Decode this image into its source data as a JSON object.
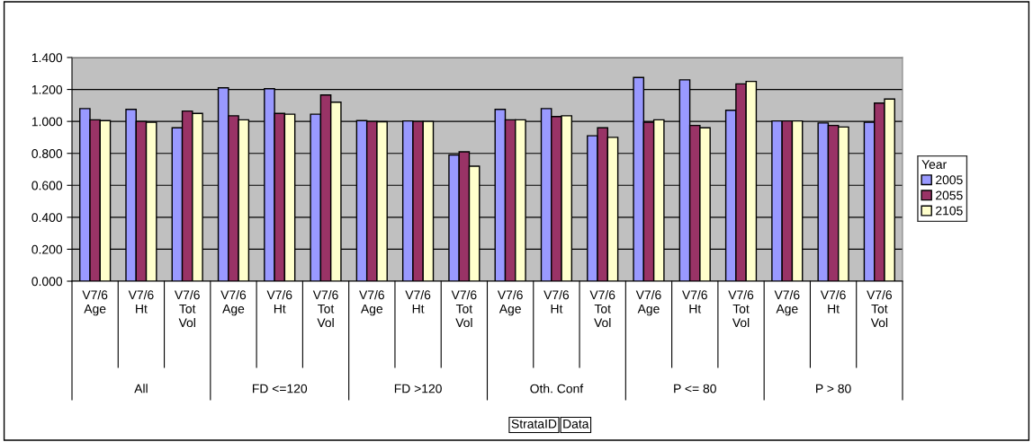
{
  "chart_data": {
    "type": "bar",
    "categories": [
      "V7/6\nAge",
      "V7/6\nHt",
      "V7/6\nTot\nVol",
      "V7/6\nAge",
      "V7/6\nHt",
      "V7/6\nTot\nVol",
      "V7/6\nAge",
      "V7/6\nHt",
      "V7/6\nTot\nVol",
      "V7/6\nAge",
      "V7/6\nHt",
      "V7/6\nTot\nVol",
      "V7/6\nAge",
      "V7/6\nHt",
      "V7/6\nTot\nVol",
      "V7/6\nAge",
      "V7/6\nHt",
      "V7/6\nTot\nVol"
    ],
    "series": [
      {
        "name": "2005",
        "color": "#9999ff",
        "values": [
          1.08,
          1.075,
          0.96,
          1.21,
          1.205,
          1.045,
          1.005,
          1.003,
          0.79,
          1.075,
          1.08,
          0.91,
          1.275,
          1.26,
          1.07,
          1.003,
          0.99,
          0.995
        ]
      },
      {
        "name": "2055",
        "color": "#993366",
        "values": [
          1.01,
          1.0,
          1.065,
          1.035,
          1.05,
          1.165,
          1.0,
          1.0,
          0.81,
          1.01,
          1.03,
          0.96,
          0.995,
          0.975,
          1.235,
          1.003,
          0.975,
          1.115
        ]
      },
      {
        "name": "2105",
        "color": "#ffffcc",
        "values": [
          1.005,
          0.995,
          1.05,
          1.01,
          1.045,
          1.12,
          0.998,
          1.0,
          0.72,
          1.01,
          1.035,
          0.9,
          1.01,
          0.96,
          1.25,
          1.003,
          0.965,
          1.14
        ]
      }
    ],
    "ylim": [
      0,
      1.4
    ],
    "yticks": [
      {
        "value": 0,
        "label": "0.000"
      },
      {
        "value": 0.2,
        "label": "0.200"
      },
      {
        "value": 0.4,
        "label": "0.400"
      },
      {
        "value": 0.6,
        "label": "0.600"
      },
      {
        "value": 0.8,
        "label": "0.800"
      },
      {
        "value": 1.0,
        "label": "1.000"
      },
      {
        "value": 1.2,
        "label": "1.200"
      },
      {
        "value": 1.4,
        "label": "1.400"
      }
    ],
    "grid": "y",
    "legend": "right",
    "legend_title": "Year",
    "annotations": [
      "All",
      "FD <=120",
      "FD >120",
      "Oth. Conf",
      "P <= 80",
      "P > 80",
      "StrataID",
      "Data"
    ]
  }
}
